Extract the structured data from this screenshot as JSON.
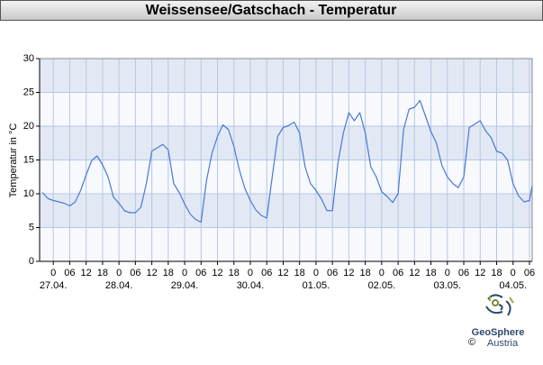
{
  "chart_data": {
    "type": "line",
    "title": "Weissensee/Gatschach - Temperatur",
    "y_label": "Temperatur in °C",
    "ylim": [
      0,
      30
    ],
    "yticks": [
      0,
      5,
      10,
      15,
      20,
      25,
      30
    ],
    "grid": true,
    "xlim": [
      "26.04. 19:00",
      "04.05. 07:00"
    ],
    "xticks": [
      {
        "value": "27.04. 00:00",
        "label": "0"
      },
      {
        "value": "27.04. 06:00",
        "label": "06"
      },
      {
        "value": "27.04. 12:00",
        "label": "12"
      },
      {
        "value": "27.04. 18:00",
        "label": "18"
      },
      {
        "value": "28.04. 00:00",
        "label": "0"
      },
      {
        "value": "28.04. 06:00",
        "label": "06"
      },
      {
        "value": "28.04. 12:00",
        "label": "12"
      },
      {
        "value": "28.04. 18:00",
        "label": "18"
      },
      {
        "value": "29.04. 00:00",
        "label": "0"
      },
      {
        "value": "29.04. 06:00",
        "label": "06"
      },
      {
        "value": "29.04. 12:00",
        "label": "12"
      },
      {
        "value": "29.04. 18:00",
        "label": "18"
      },
      {
        "value": "30.04. 00:00",
        "label": "0"
      },
      {
        "value": "30.04. 06:00",
        "label": "06"
      },
      {
        "value": "30.04. 12:00",
        "label": "12"
      },
      {
        "value": "30.04. 18:00",
        "label": "18"
      },
      {
        "value": "01.05. 00:00",
        "label": "0"
      },
      {
        "value": "01.05. 06:00",
        "label": "06"
      },
      {
        "value": "01.05. 12:00",
        "label": "12"
      },
      {
        "value": "01.05. 18:00",
        "label": "18"
      },
      {
        "value": "02.05. 00:00",
        "label": "0"
      },
      {
        "value": "02.05. 06:00",
        "label": "06"
      },
      {
        "value": "02.05. 12:00",
        "label": "12"
      },
      {
        "value": "02.05. 18:00",
        "label": "18"
      },
      {
        "value": "03.05. 00:00",
        "label": "0"
      },
      {
        "value": "03.05. 06:00",
        "label": "06"
      },
      {
        "value": "03.05. 12:00",
        "label": "12"
      },
      {
        "value": "03.05. 18:00",
        "label": "18"
      },
      {
        "value": "04.05. 00:00",
        "label": "0"
      },
      {
        "value": "04.05. 06:00",
        "label": "06"
      }
    ],
    "date_labels": [
      "27.04.",
      "28.04.",
      "29.04.",
      "30.04.",
      "01.05.",
      "02.05.",
      "03.05.",
      "04.05."
    ],
    "x": [
      "26.04. 20:00",
      "26.04. 22:00",
      "27.04. 00:00",
      "27.04. 02:00",
      "27.04. 04:00",
      "27.04. 06:00",
      "27.04. 08:00",
      "27.04. 10:00",
      "27.04. 12:00",
      "27.04. 14:00",
      "27.04. 16:00",
      "27.04. 18:00",
      "27.04. 20:00",
      "27.04. 22:00",
      "28.04. 00:00",
      "28.04. 02:00",
      "28.04. 04:00",
      "28.04. 06:00",
      "28.04. 08:00",
      "28.04. 10:00",
      "28.04. 12:00",
      "28.04. 14:00",
      "28.04. 16:00",
      "28.04. 18:00",
      "28.04. 20:00",
      "28.04. 22:00",
      "29.04. 00:00",
      "29.04. 02:00",
      "29.04. 04:00",
      "29.04. 06:00",
      "29.04. 08:00",
      "29.04. 10:00",
      "29.04. 12:00",
      "29.04. 14:00",
      "29.04. 16:00",
      "29.04. 18:00",
      "29.04. 20:00",
      "29.04. 22:00",
      "30.04. 00:00",
      "30.04. 02:00",
      "30.04. 04:00",
      "30.04. 06:00",
      "30.04. 08:00",
      "30.04. 10:00",
      "30.04. 12:00",
      "30.04. 14:00",
      "30.04. 16:00",
      "30.04. 18:00",
      "30.04. 20:00",
      "30.04. 22:00",
      "01.05. 00:00",
      "01.05. 02:00",
      "01.05. 04:00",
      "01.05. 06:00",
      "01.05. 08:00",
      "01.05. 10:00",
      "01.05. 12:00",
      "01.05. 14:00",
      "01.05. 16:00",
      "01.05. 18:00",
      "01.05. 20:00",
      "01.05. 22:00",
      "02.05. 00:00",
      "02.05. 02:00",
      "02.05. 04:00",
      "02.05. 06:00",
      "02.05. 08:00",
      "02.05. 10:00",
      "02.05. 12:00",
      "02.05. 14:00",
      "02.05. 16:00",
      "02.05. 18:00",
      "02.05. 20:00",
      "02.05. 22:00",
      "03.05. 00:00",
      "03.05. 02:00",
      "03.05. 04:00",
      "03.05. 06:00",
      "03.05. 08:00",
      "03.05. 10:00",
      "03.05. 12:00",
      "03.05. 14:00",
      "03.05. 16:00",
      "03.05. 18:00",
      "03.05. 20:00",
      "03.05. 22:00",
      "04.05. 00:00",
      "04.05. 02:00",
      "04.05. 04:00",
      "04.05. 06:00",
      "04.05. 07:00"
    ],
    "series": [
      {
        "name": "Temperatur",
        "color": "#4a78d6",
        "values": [
          10.2,
          9.3,
          9.0,
          8.8,
          8.6,
          8.2,
          8.8,
          10.5,
          12.8,
          14.9,
          15.6,
          14.3,
          12.5,
          9.5,
          8.6,
          7.5,
          7.2,
          7.2,
          8.0,
          11.5,
          16.3,
          16.8,
          17.3,
          16.5,
          11.5,
          10.2,
          8.5,
          7.0,
          6.2,
          5.8,
          12.0,
          16.0,
          18.5,
          20.2,
          19.5,
          17.0,
          13.5,
          10.8,
          9.0,
          7.6,
          6.8,
          6.4,
          12.5,
          18.5,
          19.8,
          20.1,
          20.6,
          19.0,
          14.0,
          11.5,
          10.5,
          9.2,
          7.5,
          7.5,
          14.5,
          19.0,
          22.0,
          20.8,
          22.0,
          19.0,
          14.0,
          12.5,
          10.3,
          9.6,
          8.7,
          10.0,
          19.5,
          22.5,
          22.8,
          23.8,
          21.5,
          19.2,
          17.5,
          14.2,
          12.5,
          11.5,
          10.9,
          12.5,
          19.8,
          20.3,
          20.8,
          19.3,
          18.3,
          16.3,
          16.0,
          15.0,
          11.5,
          9.7,
          8.8,
          9.0,
          11.2
        ]
      }
    ]
  },
  "logo": {
    "name": "GeoSphere",
    "country": "Austria",
    "copyright": "©"
  }
}
